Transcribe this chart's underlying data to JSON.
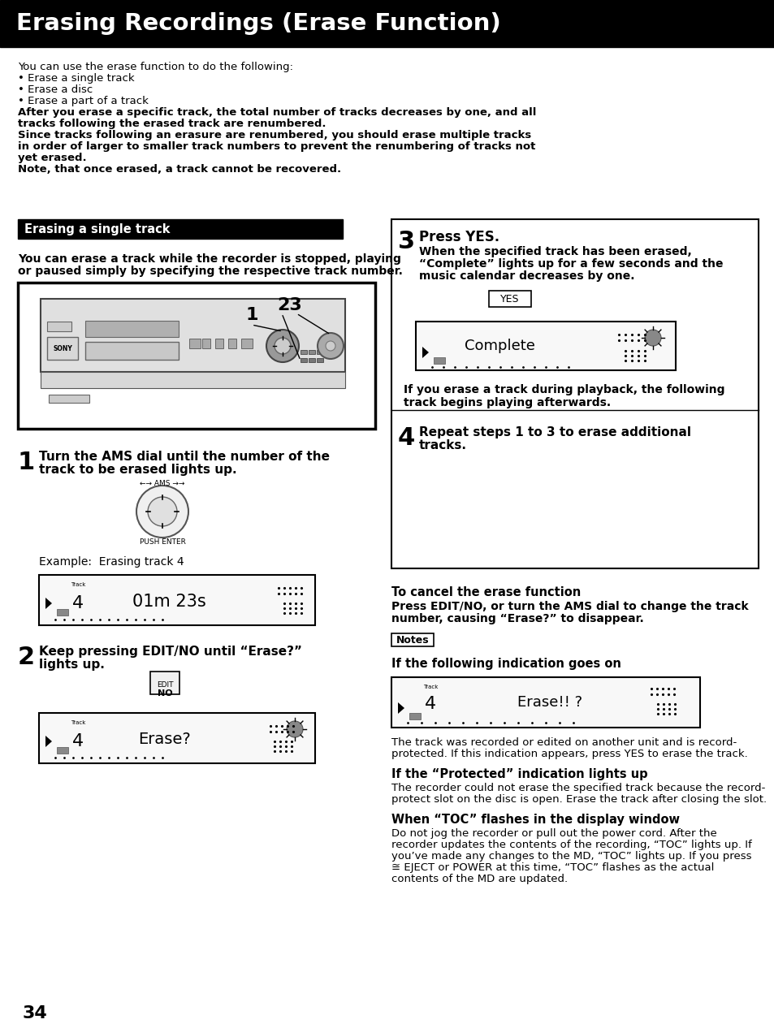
{
  "title": "Erasing Recordings (Erase Function)",
  "title_bg": "#000000",
  "title_color": "#ffffff",
  "page_bg": "#ffffff",
  "page_number": "34",
  "intro_line1": "You can use the erase function to do the following:",
  "intro_line2": "• Erase a single track",
  "intro_line3": "• Erase a disc",
  "intro_line4": "• Erase a part of a track",
  "intro_line5": "After you erase a specific track, the total number of tracks decreases by one, and all",
  "intro_line6": "tracks following the erased track are renumbered.",
  "intro_line7": "Since tracks following an erasure are renumbered, you should erase multiple tracks",
  "intro_line8": "in order of larger to smaller track numbers to prevent the renumbering of tracks not",
  "intro_line9": "yet erased.",
  "intro_line10": "Note, that once erased, a track cannot be recovered.",
  "section_header": "Erasing a single track",
  "left_intro_1": "You can erase a track while the recorder is stopped, playing",
  "left_intro_2": "or paused simply by specifying the respective track number.",
  "step1_num": "1",
  "step1_text1": "Turn the AMS dial until the number of the",
  "step1_text2": "track to be erased lights up.",
  "step1_dial_top": "←→ AMS →→",
  "step1_dial_bot": "PUSH ENTER",
  "step1_example": "Example:  Erasing track 4",
  "step2_num": "2",
  "step2_text1": "Keep pressing EDIT/NO until “Erase?”",
  "step2_text2": "lights up.",
  "step2_btn1": "EDIT",
  "step2_btn2": "NO",
  "step3_num": "3",
  "step3_bold": "Press YES.",
  "step3_text1": "When the specified track has been erased,",
  "step3_text2": "“Complete” lights up for a few seconds and the",
  "step3_text3": "music calendar decreases by one.",
  "step3_yes": "YES",
  "step3_note1": "If you erase a track during playback, the following",
  "step3_note2": "track begins playing afterwards.",
  "step4_num": "4",
  "step4_text1": "Repeat steps 1 to 3 to erase additional",
  "step4_text2": "tracks.",
  "cancel_header": "To cancel the erase function",
  "cancel_text1": "Press EDIT/NO, or turn the AMS dial to change the track",
  "cancel_text2": "number, causing “Erase?” to disappear.",
  "notes_label": "Notes",
  "notes_sub": "If the following indication goes on",
  "notes_text1": "The track was recorded or edited on another unit and is record-",
  "notes_text2": "protected. If this indication appears, press YES to erase the track.",
  "prot_header": "If the “Protected” indication lights up",
  "prot_text1": "The recorder could not erase the specified track because the record-",
  "prot_text2": "protect slot on the disc is open. Erase the track after closing the slot.",
  "toc_header": "When “TOC” flashes in the display window",
  "toc_text1": "Do not jog the recorder or pull out the power cord. After the",
  "toc_text2": "recorder updates the contents of the recording, “TOC” lights up. If",
  "toc_text3": "you’ve made any changes to the MD, “TOC” lights up. If you press",
  "toc_text4": "≅ EJECT or POWER at this time, “TOC” flashes as the actual",
  "toc_text5": "contents of the MD are updated."
}
